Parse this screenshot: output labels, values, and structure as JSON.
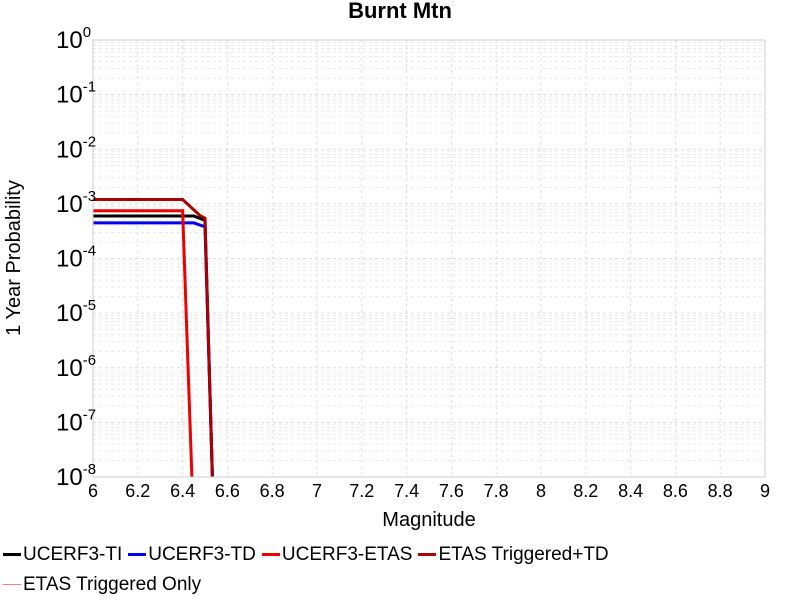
{
  "chart_data": {
    "type": "line",
    "title": "Burnt Mtn",
    "xlabel": "Magnitude",
    "ylabel": "1 Year Probability",
    "xlim": [
      6,
      9
    ],
    "ylim": [
      1e-08,
      1
    ],
    "yscale": "log",
    "grid": true,
    "legend_position": "bottom",
    "x_ticks": [
      "6",
      "6.2",
      "6.4",
      "6.6",
      "6.8",
      "7",
      "7.2",
      "7.4",
      "7.6",
      "7.8",
      "8",
      "8.2",
      "8.4",
      "8.6",
      "8.8",
      "9"
    ],
    "y_ticks": [
      {
        "base": "10",
        "exp": "0"
      },
      {
        "base": "10",
        "exp": "-1"
      },
      {
        "base": "10",
        "exp": "-2"
      },
      {
        "base": "10",
        "exp": "-3"
      },
      {
        "base": "10",
        "exp": "-4"
      },
      {
        "base": "10",
        "exp": "-5"
      },
      {
        "base": "10",
        "exp": "-6"
      },
      {
        "base": "10",
        "exp": "-7"
      },
      {
        "base": "10",
        "exp": "-8"
      }
    ],
    "series": [
      {
        "name": "UCERF3-TI",
        "color": "#000000",
        "width": 3,
        "x": [
          6.0,
          6.45,
          6.5,
          6.54
        ],
        "y": [
          0.0006,
          0.0006,
          0.0005,
          1e-09
        ]
      },
      {
        "name": "UCERF3-TD",
        "color": "#0000ee",
        "width": 3,
        "x": [
          6.0,
          6.45,
          6.5,
          6.54
        ],
        "y": [
          0.00045,
          0.00045,
          0.00038,
          1e-09
        ]
      },
      {
        "name": "UCERF3-ETAS",
        "color": "#ee0000",
        "width": 3,
        "x": [
          6.0,
          6.4,
          6.45
        ],
        "y": [
          0.00075,
          0.00075,
          1e-09
        ]
      },
      {
        "name": "ETAS Triggered+TD",
        "color": "#aa0000",
        "width": 3,
        "x": [
          6.0,
          6.4,
          6.48,
          6.5,
          6.54
        ],
        "y": [
          0.0012,
          0.0012,
          0.0006,
          0.00055,
          1e-09
        ]
      },
      {
        "name": "ETAS Triggered Only",
        "color": "#f08080",
        "width": 1.5,
        "x": [],
        "y": []
      }
    ]
  }
}
